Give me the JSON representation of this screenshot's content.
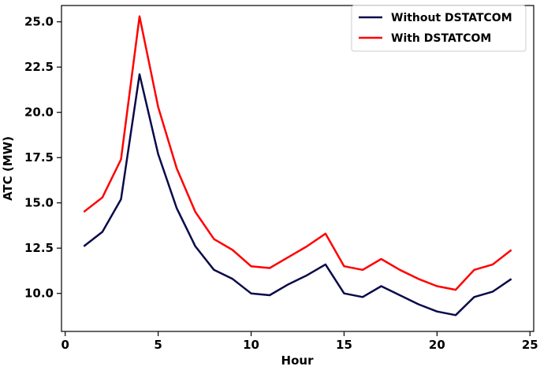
{
  "chart_data": {
    "type": "line",
    "title": "",
    "xlabel": "Hour",
    "ylabel": "ATC (MW)",
    "xlim": [
      -0.2,
      25.2
    ],
    "ylim": [
      7.9,
      25.9
    ],
    "xticks": [
      0,
      5,
      10,
      15,
      20,
      25
    ],
    "yticks": [
      10.0,
      12.5,
      15.0,
      17.5,
      20.0,
      22.5,
      25.0
    ],
    "xtick_labels": [
      "0",
      "5",
      "10",
      "15",
      "20",
      "25"
    ],
    "ytick_labels": [
      "10.0",
      "12.5",
      "15.0",
      "17.5",
      "20.0",
      "22.5",
      "25.0"
    ],
    "grid": false,
    "legend_position": "top-right",
    "x": [
      1,
      2,
      3,
      4,
      5,
      6,
      7,
      8,
      9,
      10,
      11,
      12,
      13,
      14,
      15,
      16,
      17,
      18,
      19,
      20,
      21,
      22,
      23,
      24
    ],
    "series": [
      {
        "name": "Without DSTATCOM",
        "color": "#0a0a4a",
        "values": [
          12.6,
          13.4,
          15.2,
          22.1,
          17.7,
          14.7,
          12.6,
          11.3,
          10.8,
          10.0,
          9.9,
          10.5,
          11.0,
          11.6,
          10.0,
          9.8,
          10.4,
          9.9,
          9.4,
          9.0,
          8.8,
          9.8,
          10.1,
          10.8
        ]
      },
      {
        "name": "With DSTATCOM",
        "color": "#ff0000",
        "values": [
          14.5,
          15.3,
          17.4,
          25.3,
          20.3,
          16.9,
          14.5,
          13.0,
          12.4,
          11.5,
          11.4,
          12.0,
          12.6,
          13.3,
          11.5,
          11.3,
          11.9,
          11.3,
          10.8,
          10.4,
          10.2,
          11.3,
          11.6,
          12.4
        ]
      }
    ]
  }
}
